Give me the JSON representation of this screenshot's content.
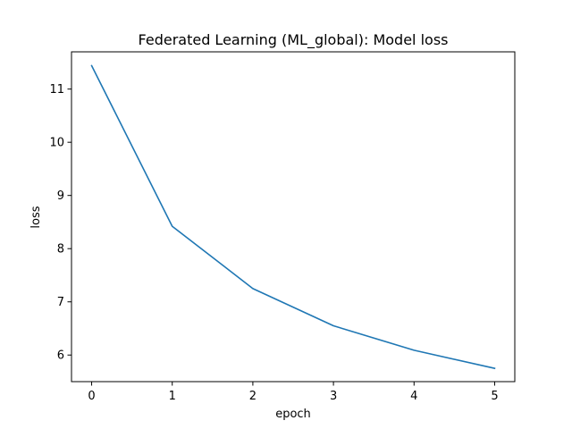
{
  "chart_data": {
    "type": "line",
    "title": "Federated Learning (ML_global): Model loss",
    "xlabel": "epoch",
    "ylabel": "loss",
    "x": [
      0,
      1,
      2,
      3,
      4,
      5
    ],
    "series": [
      {
        "name": "",
        "color": "#1f77b4",
        "values": [
          11.44,
          8.42,
          7.25,
          6.55,
          6.09,
          5.75
        ]
      }
    ],
    "xlim": [
      -0.25,
      5.25
    ],
    "ylim": [
      5.5,
      11.7
    ],
    "xticks": [
      0,
      1,
      2,
      3,
      4,
      5
    ],
    "yticks": [
      6,
      7,
      8,
      9,
      10,
      11
    ],
    "grid": false,
    "legend": false
  }
}
